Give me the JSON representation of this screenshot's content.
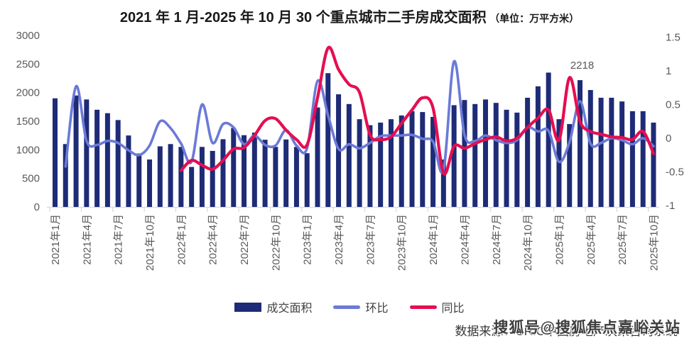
{
  "title": {
    "main": "2021 年 1 月-2025 年 10 月 30 个重点城市二手房成交面积",
    "unit": "（单位：万平方米）"
  },
  "legend": [
    {
      "label": "成交面积",
      "type": "bar"
    },
    {
      "label": "环比",
      "type": "line"
    },
    {
      "label": "同比",
      "type": "line"
    }
  ],
  "annotation": {
    "label": "2218",
    "month": "2025年3月",
    "month_index": 50
  },
  "source": {
    "text": "数据来源：CRIC中国房地产决策咨询系统",
    "watermark": "搜狐号@搜狐焦点嘉峪关站"
  },
  "colors": {
    "bar": "#1e2b76",
    "mom_line": "#6b7ad8",
    "yoy_line": "#e50e50",
    "axis": "#d9d9d9",
    "tick_text": "#595959",
    "annotation_text": "#595959"
  },
  "chart_data": {
    "type": "combo-bar-line",
    "title": "2021年1月-2025年10月30个重点城市二手房成交面积（单位：万平方米）",
    "x": [
      "2021年1月",
      "2021年2月",
      "2021年3月",
      "2021年4月",
      "2021年5月",
      "2021年6月",
      "2021年7月",
      "2021年8月",
      "2021年9月",
      "2021年10月",
      "2021年11月",
      "2021年12月",
      "2022年1月",
      "2022年2月",
      "2022年3月",
      "2022年4月",
      "2022年5月",
      "2022年6月",
      "2022年7月",
      "2022年8月",
      "2022年9月",
      "2022年10月",
      "2022年11月",
      "2022年12月",
      "2023年1月",
      "2023年2月",
      "2023年3月",
      "2023年4月",
      "2023年5月",
      "2023年6月",
      "2023年7月",
      "2023年8月",
      "2023年9月",
      "2023年10月",
      "2023年11月",
      "2023年12月",
      "2024年1月",
      "2024年2月",
      "2024年3月",
      "2024年4月",
      "2024年5月",
      "2024年6月",
      "2024年7月",
      "2024年8月",
      "2024年9月",
      "2024年10月",
      "2024年11月",
      "2024年12月",
      "2025年1月",
      "2025年2月",
      "2025年3月",
      "2025年4月",
      "2025年5月",
      "2025年6月",
      "2025年7月",
      "2025年8月",
      "2025年9月",
      "2025年10月"
    ],
    "x_tick_every": 3,
    "left_axis": {
      "min": 0,
      "max": 3000,
      "step": 500,
      "ticks": [
        0,
        500,
        1000,
        1500,
        2000,
        2500,
        3000
      ]
    },
    "right_axis": {
      "min": -1,
      "max": 1.5,
      "step": 0.5,
      "ticks": [
        -1,
        -0.5,
        0,
        0.5,
        1,
        1.5
      ]
    },
    "grid": false,
    "legend_position": "bottom",
    "series": [
      {
        "name": "成交面积",
        "type": "bar",
        "axis": "left",
        "start_index": 0,
        "values": [
          1900,
          1100,
          1950,
          1880,
          1700,
          1640,
          1520,
          1250,
          935,
          830,
          1060,
          1100,
          1050,
          700,
          1050,
          980,
          1185,
          1380,
          1255,
          1300,
          1175,
          1050,
          1180,
          1050,
          940,
          1740,
          2340,
          1970,
          1800,
          1535,
          1430,
          1475,
          1535,
          1600,
          1675,
          1660,
          1575,
          830,
          1780,
          1870,
          1800,
          1880,
          1820,
          1700,
          1650,
          1910,
          2110,
          2350,
          1535,
          1450,
          2218,
          2045,
          1910,
          1910,
          1845,
          1675,
          1675,
          1475
        ]
      },
      {
        "name": "环比",
        "type": "line",
        "axis": "right",
        "start_index": 1,
        "values": [
          -0.42,
          0.77,
          -0.04,
          -0.1,
          -0.04,
          -0.07,
          -0.18,
          -0.25,
          -0.11,
          0.25,
          0.15,
          -0.08,
          -0.35,
          0.5,
          -0.07,
          0.21,
          0.16,
          -0.09,
          0.04,
          -0.1,
          -0.11,
          0.12,
          -0.11,
          -0.15,
          0.85,
          0.34,
          -0.16,
          -0.09,
          -0.15,
          -0.07,
          0.03,
          0.04,
          0.04,
          0.05,
          -0.01,
          -0.05,
          -0.47,
          1.14,
          0.05,
          -0.04,
          0.04,
          -0.03,
          -0.07,
          -0.03,
          0.16,
          0.1,
          0.11,
          -0.35,
          -0.06,
          0.55,
          -0.08,
          -0.07,
          0.0,
          -0.03,
          -0.09,
          0.0,
          -0.12
        ]
      },
      {
        "name": "同比",
        "type": "line",
        "axis": "right",
        "start_index": 12,
        "values": [
          -0.48,
          -0.33,
          -0.4,
          -0.46,
          -0.33,
          -0.16,
          -0.14,
          0.04,
          0.26,
          0.29,
          0.12,
          -0.02,
          -0.1,
          0.6,
          1.34,
          1.02,
          0.8,
          0.68,
          0.05,
          -0.02,
          0.02,
          0.22,
          0.42,
          0.6,
          0.45,
          -0.52,
          -0.12,
          -0.15,
          -0.08,
          -0.02,
          0.02,
          -0.04,
          0.0,
          0.16,
          0.3,
          0.42,
          -0.03,
          0.9,
          0.25,
          0.1,
          0.06,
          0.02,
          0.01,
          -0.02,
          0.1,
          -0.23
        ]
      }
    ]
  }
}
